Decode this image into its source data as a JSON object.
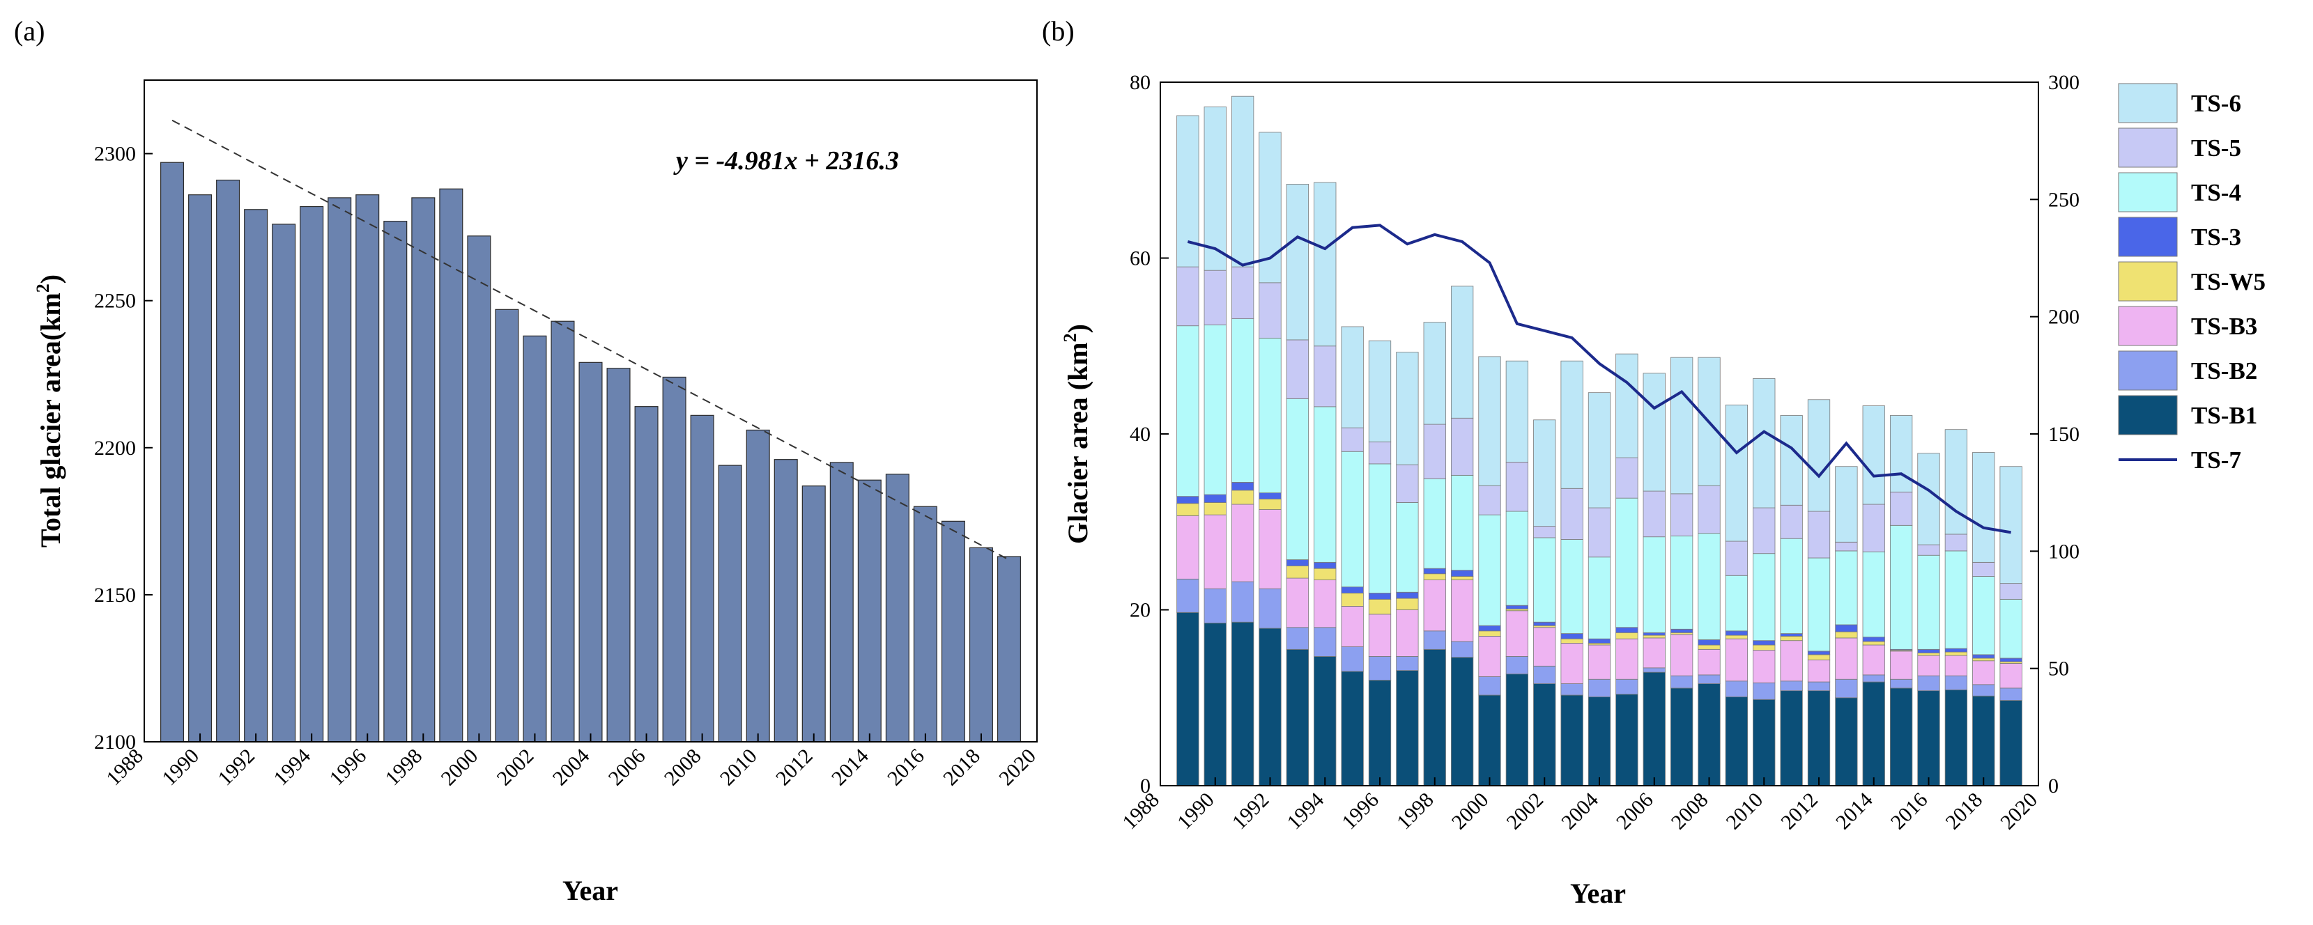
{
  "panel_a": {
    "label": "(a)",
    "ylabel_main": "Total glacier area(km",
    "ylabel_sup": "2",
    "ylabel_close": ")",
    "equation": "y = -4.981x + 2316.3"
  },
  "panel_b": {
    "label": "(b)",
    "ylabel_main": "Glacier area (km",
    "ylabel_sup": "2",
    "ylabel_close": ")"
  },
  "chart_data": [
    {
      "type": "bar",
      "panel": "(a)",
      "xlabel": "Year",
      "ylabel": "Total glacier area(km2)",
      "xlim": [
        1988,
        2020
      ],
      "ylim": [
        2100,
        2325
      ],
      "xticks": [
        1988,
        1990,
        1992,
        1994,
        1996,
        1998,
        2000,
        2002,
        2004,
        2006,
        2008,
        2010,
        2012,
        2014,
        2016,
        2018,
        2020
      ],
      "yticks": [
        2100,
        2150,
        2200,
        2250,
        2300
      ],
      "x": [
        1989,
        1990,
        1991,
        1992,
        1993,
        1994,
        1995,
        1996,
        1997,
        1998,
        1999,
        2000,
        2001,
        2002,
        2003,
        2004,
        2005,
        2006,
        2007,
        2008,
        2009,
        2010,
        2011,
        2012,
        2013,
        2014,
        2015,
        2016,
        2017,
        2018,
        2019
      ],
      "values": [
        2297,
        2286,
        2291,
        2281,
        2276,
        2282,
        2285,
        2286,
        2277,
        2285,
        2288,
        2272,
        2247,
        2238,
        2243,
        2229,
        2227,
        2214,
        2224,
        2211,
        2194,
        2206,
        2196,
        2187,
        2195,
        2189,
        2191,
        2180,
        2175,
        2166,
        2163
      ],
      "bar_color": "#6B83AF",
      "trendline": {
        "slope": -4.981,
        "intercept": 2316.3,
        "from_year": 1989,
        "to_year": 2019,
        "style": "dashed"
      },
      "annotation": "y = -4.981x + 2316.3",
      "grid": false
    },
    {
      "type": "bar",
      "stacked": true,
      "panel": "(b)",
      "xlabel": "Year",
      "ylabel": "Glacier area (km2)",
      "xlim": [
        1988,
        2020
      ],
      "ylim": [
        0,
        80
      ],
      "y2lim": [
        0,
        300
      ],
      "xticks": [
        1988,
        1990,
        1992,
        1994,
        1996,
        1998,
        2000,
        2002,
        2004,
        2006,
        2008,
        2010,
        2012,
        2014,
        2016,
        2018,
        2020
      ],
      "yticks": [
        0,
        20,
        40,
        60,
        80
      ],
      "y2ticks": [
        0,
        50,
        100,
        150,
        200,
        250,
        300
      ],
      "x": [
        1989,
        1990,
        1991,
        1992,
        1993,
        1994,
        1995,
        1996,
        1997,
        1998,
        1999,
        2000,
        2001,
        2002,
        2003,
        2004,
        2005,
        2006,
        2007,
        2008,
        2009,
        2010,
        2011,
        2012,
        2013,
        2014,
        2015,
        2016,
        2017,
        2018,
        2019
      ],
      "series": [
        {
          "name": "TS-B1",
          "color": "#0B4F78",
          "values": [
            19.7,
            18.5,
            18.6,
            17.9,
            15.5,
            14.7,
            13.0,
            12.0,
            13.1,
            15.5,
            14.6,
            10.3,
            12.7,
            11.6,
            10.3,
            10.1,
            10.4,
            12.9,
            11.1,
            11.6,
            10.1,
            9.8,
            10.8,
            10.8,
            10.0,
            11.8,
            11.1,
            10.8,
            10.9,
            10.2,
            9.7
          ]
        },
        {
          "name": "TS-B2",
          "color": "#8CA0F0",
          "values": [
            3.8,
            3.9,
            4.6,
            4.5,
            2.5,
            3.3,
            2.8,
            2.7,
            1.6,
            2.1,
            1.8,
            2.1,
            2.0,
            2.0,
            1.3,
            2.0,
            1.7,
            0.5,
            1.4,
            1.0,
            1.8,
            1.9,
            1.1,
            1.0,
            2.1,
            0.8,
            1.0,
            1.7,
            1.6,
            1.3,
            1.4
          ]
        },
        {
          "name": "TS-B3",
          "color": "#EEB4F2",
          "values": [
            7.2,
            8.4,
            8.8,
            9.0,
            5.6,
            5.4,
            4.6,
            4.8,
            5.3,
            5.8,
            7.0,
            4.6,
            5.2,
            4.4,
            4.6,
            3.9,
            4.6,
            3.4,
            4.7,
            2.9,
            4.8,
            3.7,
            4.6,
            2.5,
            4.7,
            3.4,
            3.2,
            2.3,
            2.3,
            2.7,
            2.8
          ]
        },
        {
          "name": "TS-W5",
          "color": "#EFE272",
          "values": [
            1.4,
            1.4,
            1.6,
            1.2,
            1.4,
            1.3,
            1.5,
            1.7,
            1.3,
            0.7,
            0.4,
            0.6,
            0.2,
            0.2,
            0.5,
            0.2,
            0.7,
            0.3,
            0.2,
            0.5,
            0.4,
            0.6,
            0.5,
            0.6,
            0.7,
            0.4,
            0.1,
            0.3,
            0.4,
            0.3,
            0.2
          ]
        },
        {
          "name": "TS-3",
          "color": "#4A66E8",
          "values": [
            0.8,
            0.9,
            0.9,
            0.7,
            0.7,
            0.7,
            0.7,
            0.7,
            0.7,
            0.6,
            0.7,
            0.6,
            0.4,
            0.4,
            0.6,
            0.5,
            0.6,
            0.3,
            0.4,
            0.6,
            0.5,
            0.5,
            0.3,
            0.4,
            0.8,
            0.5,
            0.1,
            0.4,
            0.4,
            0.4,
            0.4
          ]
        },
        {
          "name": "TS-4",
          "color": "#B3FAFA",
          "values": [
            19.4,
            19.3,
            18.6,
            17.6,
            18.3,
            17.7,
            15.4,
            14.7,
            10.2,
            10.2,
            10.8,
            12.6,
            10.7,
            9.6,
            10.7,
            9.3,
            14.7,
            10.9,
            10.6,
            12.1,
            6.3,
            9.9,
            10.8,
            10.6,
            8.4,
            9.7,
            14.1,
            10.7,
            11.1,
            8.9,
            6.7
          ]
        },
        {
          "name": "TS-5",
          "color": "#C7C9F5",
          "values": [
            6.7,
            6.2,
            5.9,
            6.3,
            6.7,
            6.9,
            2.7,
            2.5,
            4.3,
            6.2,
            6.5,
            3.3,
            5.6,
            1.3,
            5.8,
            5.6,
            4.6,
            5.2,
            4.8,
            5.4,
            3.9,
            5.2,
            3.8,
            5.3,
            1.0,
            5.4,
            3.8,
            1.2,
            1.9,
            1.6,
            1.8
          ]
        },
        {
          "name": "TS-6",
          "color": "#BDE7F7",
          "values": [
            17.2,
            18.6,
            19.4,
            17.1,
            17.7,
            18.6,
            11.5,
            11.5,
            12.8,
            11.6,
            15.0,
            14.7,
            11.5,
            12.1,
            14.5,
            13.1,
            11.8,
            13.4,
            15.5,
            14.6,
            15.5,
            14.7,
            10.2,
            12.7,
            8.6,
            11.2,
            8.7,
            10.4,
            11.9,
            12.5,
            13.3
          ]
        },
        {
          "name": "TS-7",
          "type": "line",
          "axis": "right",
          "color": "#1C2A8C",
          "values": [
            232,
            229,
            222,
            225,
            234,
            229,
            238,
            239,
            231,
            235,
            232,
            223,
            197,
            194,
            191,
            180,
            172,
            161,
            168,
            155,
            142,
            151,
            144,
            132,
            146,
            132,
            133,
            126,
            117,
            110,
            108
          ]
        }
      ],
      "legend": {
        "placement": "right",
        "entries": [
          "TS-6",
          "TS-5",
          "TS-4",
          "TS-3",
          "TS-W5",
          "TS-B3",
          "TS-B2",
          "TS-B1",
          "TS-7"
        ]
      },
      "grid": false
    }
  ]
}
